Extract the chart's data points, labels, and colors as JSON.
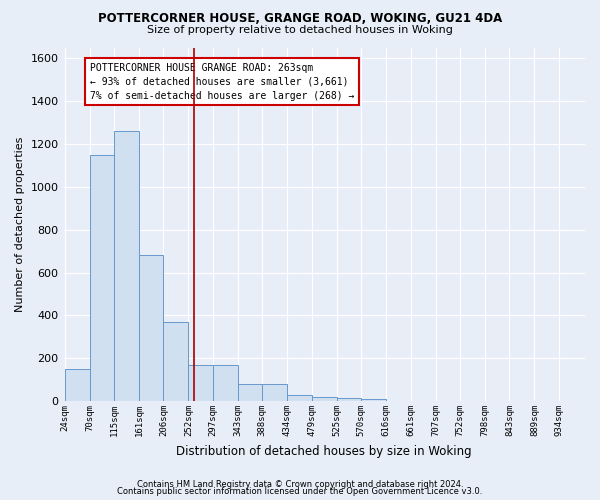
{
  "title1": "POTTERCORNER HOUSE, GRANGE ROAD, WOKING, GU21 4DA",
  "title2": "Size of property relative to detached houses in Woking",
  "xlabel": "Distribution of detached houses by size in Woking",
  "ylabel": "Number of detached properties",
  "footer1": "Contains HM Land Registry data © Crown copyright and database right 2024.",
  "footer2": "Contains public sector information licensed under the Open Government Licence v3.0.",
  "annotation_line1": "POTTERCORNER HOUSE GRANGE ROAD: 263sqm",
  "annotation_line2": "← 93% of detached houses are smaller (3,661)",
  "annotation_line3": "7% of semi-detached houses are larger (268) →",
  "bar_color": "#d0e0f0",
  "bar_edge_color": "#6699cc",
  "vline_color": "#aa0000",
  "vline_x": 263,
  "categories": [
    "24sqm",
    "70sqm",
    "115sqm",
    "161sqm",
    "206sqm",
    "252sqm",
    "297sqm",
    "343sqm",
    "388sqm",
    "434sqm",
    "479sqm",
    "525sqm",
    "570sqm",
    "616sqm",
    "661sqm",
    "707sqm",
    "752sqm",
    "798sqm",
    "843sqm",
    "889sqm",
    "934sqm"
  ],
  "bin_edges": [
    24,
    70,
    115,
    161,
    206,
    252,
    297,
    343,
    388,
    434,
    479,
    525,
    570,
    616,
    661,
    707,
    752,
    798,
    843,
    889,
    934,
    980
  ],
  "values": [
    150,
    1150,
    1260,
    680,
    370,
    170,
    170,
    80,
    80,
    30,
    20,
    15,
    10,
    0,
    0,
    0,
    0,
    0,
    0,
    0,
    0
  ],
  "ylim": [
    0,
    1650
  ],
  "yticks": [
    0,
    200,
    400,
    600,
    800,
    1000,
    1200,
    1400,
    1600
  ],
  "background_color": "#e8eef8",
  "grid_color": "#ffffff",
  "annotation_box_color": "#ffffff",
  "annotation_box_edge": "#cc0000",
  "fig_bg": "#e8eef8"
}
